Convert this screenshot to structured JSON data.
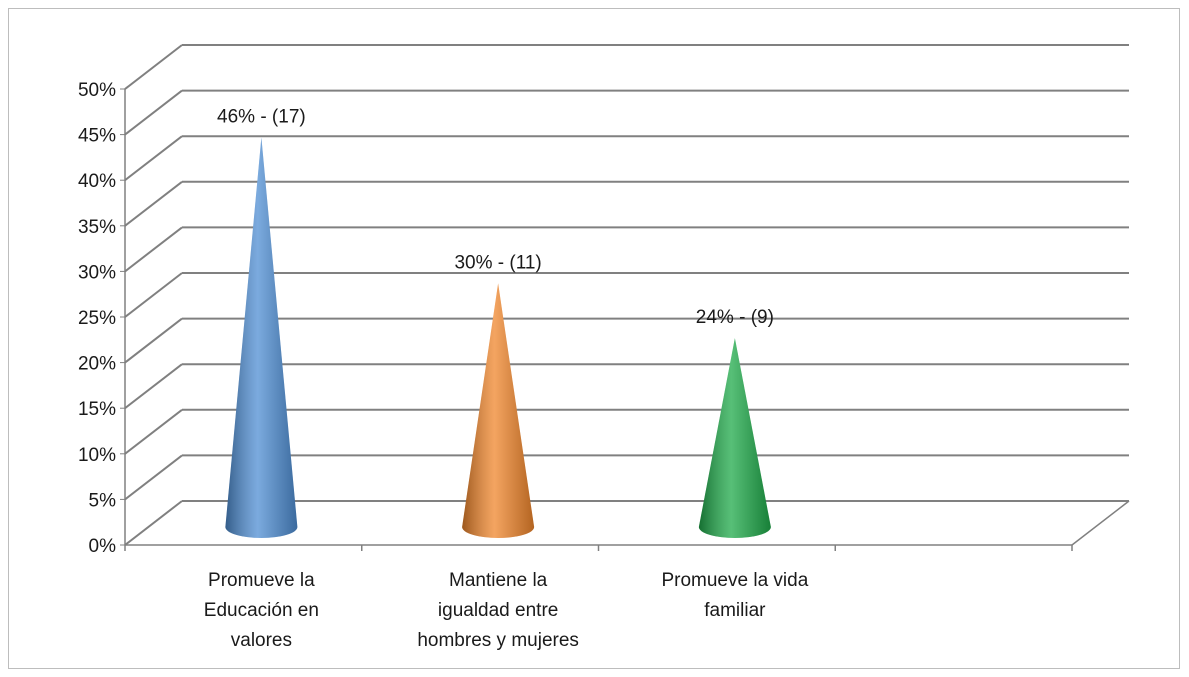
{
  "chart_data": {
    "type": "bar",
    "title": "",
    "xlabel": "",
    "ylabel": "",
    "ylim": [
      0,
      50
    ],
    "ytick_step": 5,
    "ytick_labels": [
      "0%",
      "5%",
      "10%",
      "15%",
      "20%",
      "25%",
      "30%",
      "35%",
      "40%",
      "45%",
      "50%"
    ],
    "grid": true,
    "categories": [
      [
        "Promueve la",
        "Educación en",
        "valores"
      ],
      [
        "Mantiene la",
        "igualdad entre",
        "hombres y mujeres"
      ],
      [
        "Promueve la vida",
        "familiar"
      ]
    ],
    "values": [
      46,
      30,
      24
    ],
    "data_labels": [
      "46% - (17)",
      "30% - (11)",
      "24% - (9)"
    ],
    "colors": [
      "#4f8ed3",
      "#f0862c",
      "#1faa4a"
    ]
  }
}
